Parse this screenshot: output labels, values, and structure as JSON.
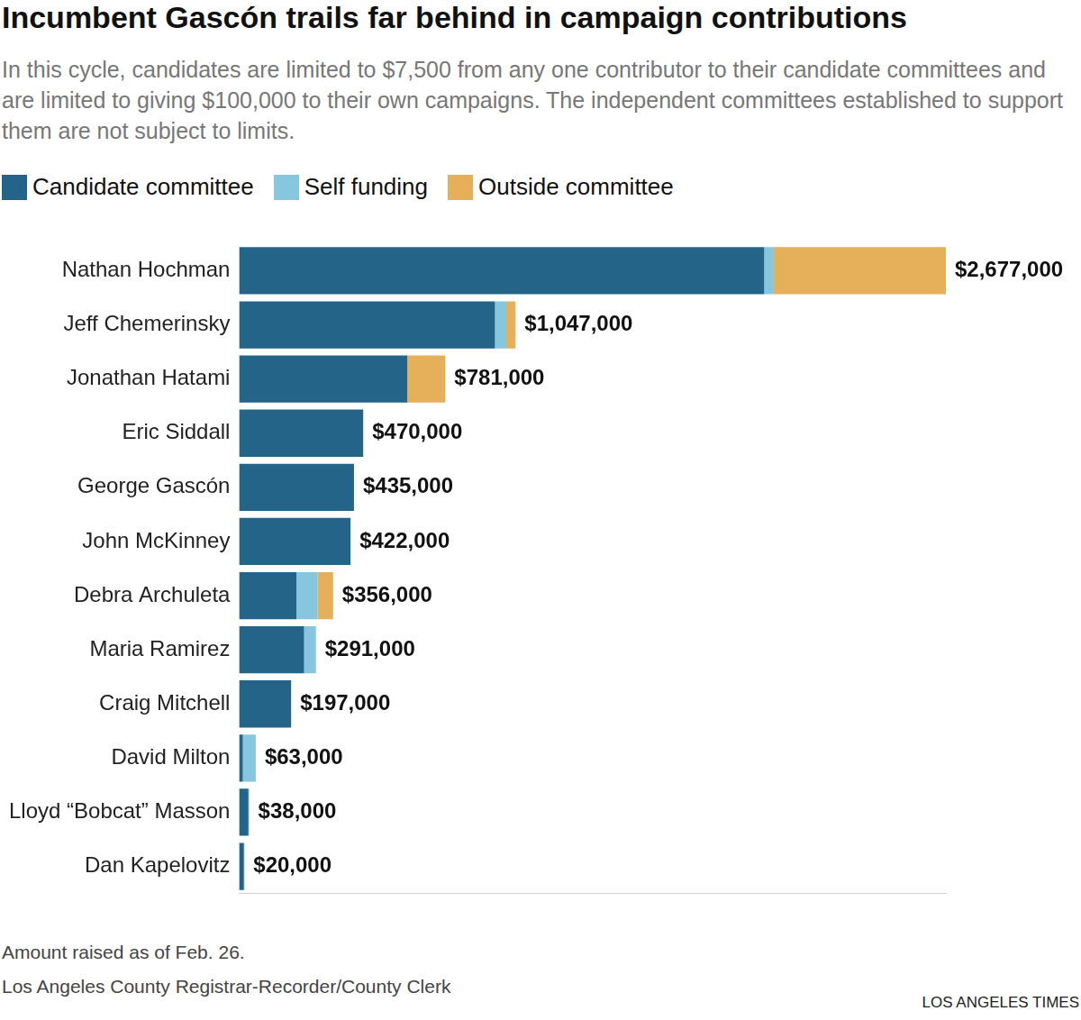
{
  "chart_data": {
    "type": "bar",
    "orientation": "horizontal",
    "stacked": true,
    "title": "Incumbent Gascón trails far behind in campaign contributions",
    "subtitle": "In this cycle, candidates are limited to $7,500 from any one contributor to their candidate committees and are limited to giving $100,000 to their own campaigns. The independent committees established to support them are not subject to limits.",
    "legend": "top",
    "grid": false,
    "tick_labels": "y",
    "categories": [
      "Nathan Hochman",
      "Jeff Chemerinsky",
      "Jonathan Hatami",
      "Eric Siddall",
      "George Gascón",
      "John McKinney",
      "Debra Archuleta",
      "Maria Ramirez",
      "Craig Mitchell",
      "David Milton",
      "Lloyd “Bobcat” Masson",
      "Dan Kapelovitz"
    ],
    "series": [
      {
        "name": "Candidate committee",
        "color": "#246489",
        "values": [
          1989000,
          969000,
          637000,
          470000,
          435000,
          422000,
          217000,
          246000,
          197000,
          14000,
          35000,
          18000
        ]
      },
      {
        "name": "Self funding",
        "color": "#86c6df",
        "values": [
          36000,
          43000,
          0,
          0,
          0,
          0,
          80000,
          45000,
          0,
          49000,
          3000,
          2000
        ]
      },
      {
        "name": "Outside committee",
        "color": "#e6b05b",
        "values": [
          652000,
          35000,
          144000,
          0,
          0,
          0,
          59000,
          0,
          0,
          0,
          0,
          0
        ]
      }
    ],
    "totals": [
      2677000,
      1047000,
      781000,
      470000,
      435000,
      422000,
      356000,
      291000,
      197000,
      63000,
      38000,
      20000
    ],
    "total_labels": [
      "$2,677,000",
      "$1,047,000",
      "$781,000",
      "$470,000",
      "$435,000",
      "$422,000",
      "$356,000",
      "$291,000",
      "$197,000",
      "$63,000",
      "$38,000",
      "$20,000"
    ],
    "xlim": [
      0,
      2677000
    ],
    "notes": [
      "Amount raised as of Feb. 26.",
      "Los Angeles County Registrar-Recorder/County Clerk"
    ],
    "credit": "LOS ANGELES TIMES"
  }
}
